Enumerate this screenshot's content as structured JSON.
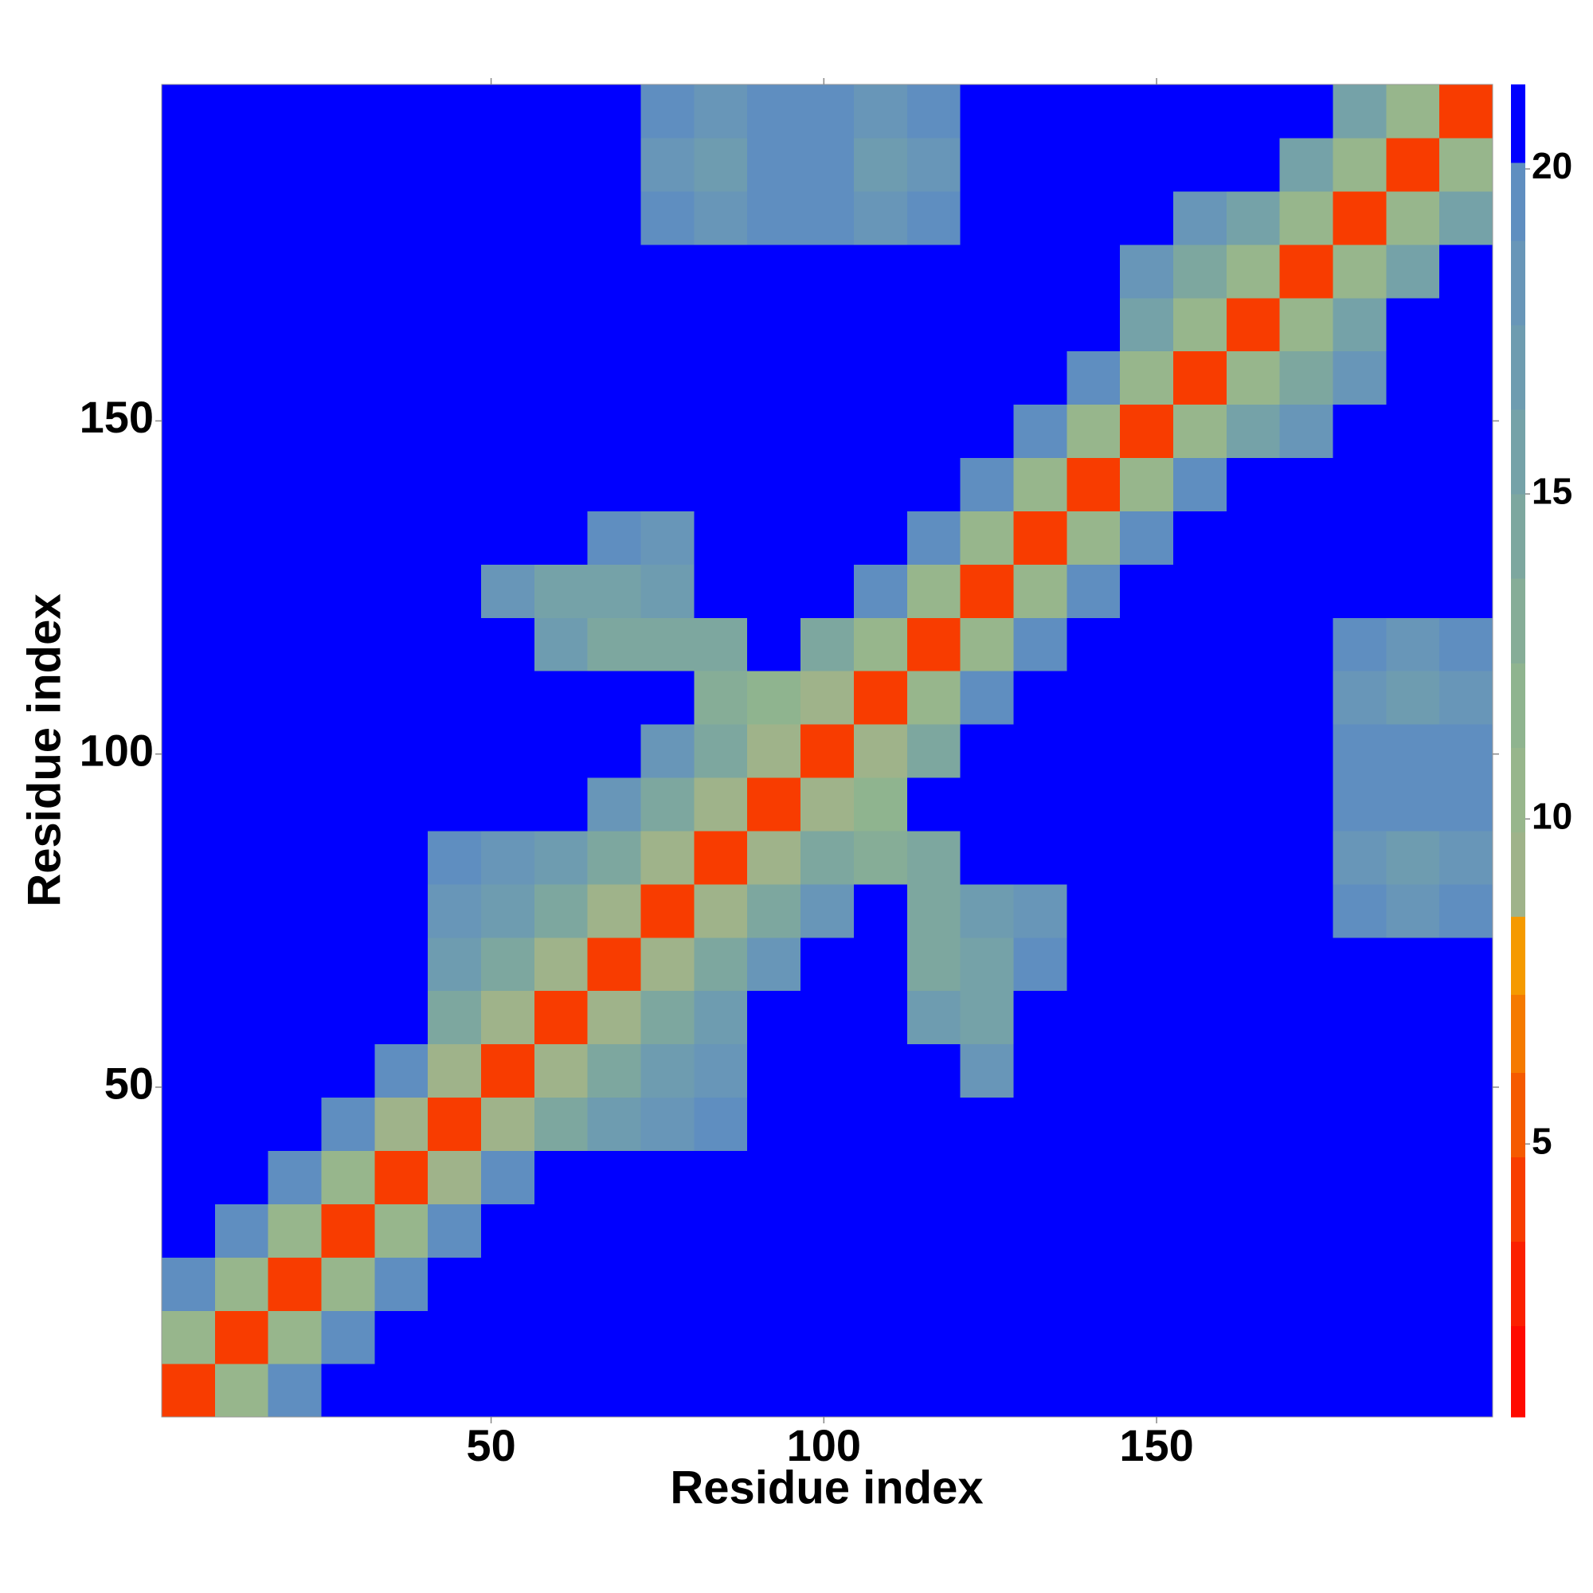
{
  "chart_data": {
    "type": "heatmap",
    "xlabel": "Residue index",
    "ylabel": "Residue index",
    "xlim": [
      0.5,
      200.5
    ],
    "ylim": [
      0.5,
      200.5
    ],
    "xticks": [
      50,
      100,
      150
    ],
    "yticks": [
      50,
      100,
      150
    ],
    "xbins": [
      0.5,
      8.5,
      16.5,
      24.5,
      32.5,
      40.5,
      48.5,
      56.5,
      64.5,
      72.5,
      80.5,
      88.5,
      96.5,
      104.5,
      112.5,
      120.5,
      128.5,
      136.5,
      144.5,
      152.5,
      160.5,
      168.5,
      176.5,
      184.5,
      192.5,
      200.5
    ],
    "ybins": [
      0.5,
      8.5,
      16.5,
      24.5,
      32.5,
      40.5,
      48.5,
      56.5,
      64.5,
      72.5,
      80.5,
      88.5,
      96.5,
      104.5,
      112.5,
      120.5,
      128.5,
      136.5,
      144.5,
      152.5,
      160.5,
      168.5,
      176.5,
      184.5,
      192.5,
      200.5
    ],
    "z": [
      [
        4,
        11,
        20,
        21,
        21,
        21,
        21,
        21,
        21,
        21,
        21,
        21,
        21,
        21,
        21,
        21,
        21,
        21,
        21,
        21,
        21,
        21,
        21,
        21,
        21
      ],
      [
        11,
        4,
        11,
        20,
        21,
        21,
        21,
        21,
        21,
        21,
        21,
        21,
        21,
        21,
        21,
        21,
        21,
        21,
        21,
        21,
        21,
        21,
        21,
        21,
        21
      ],
      [
        20,
        11,
        4,
        11,
        20,
        21,
        21,
        21,
        21,
        21,
        21,
        21,
        21,
        21,
        21,
        21,
        21,
        21,
        21,
        21,
        21,
        21,
        21,
        21,
        21
      ],
      [
        21,
        20,
        11,
        4,
        11,
        20,
        21,
        21,
        21,
        21,
        21,
        21,
        21,
        21,
        21,
        21,
        21,
        21,
        21,
        21,
        21,
        21,
        21,
        21,
        21
      ],
      [
        21,
        21,
        20,
        11,
        4,
        9,
        20,
        21,
        21,
        21,
        21,
        21,
        21,
        21,
        21,
        21,
        21,
        21,
        21,
        21,
        21,
        21,
        21,
        21,
        21
      ],
      [
        21,
        21,
        21,
        20,
        9,
        4,
        9,
        15,
        17,
        18,
        19,
        21,
        21,
        21,
        21,
        21,
        21,
        21,
        21,
        21,
        21,
        21,
        21,
        21,
        21
      ],
      [
        21,
        21,
        21,
        21,
        20,
        9,
        4,
        9,
        15,
        17,
        18,
        21,
        21,
        21,
        21,
        18,
        21,
        21,
        21,
        21,
        21,
        21,
        21,
        21,
        21
      ],
      [
        21,
        21,
        21,
        21,
        21,
        15,
        9,
        4,
        9,
        15,
        17,
        21,
        21,
        21,
        17,
        16,
        21,
        21,
        21,
        21,
        21,
        21,
        21,
        21,
        21
      ],
      [
        21,
        21,
        21,
        21,
        21,
        17,
        15,
        9,
        4,
        9,
        15,
        18,
        21,
        21,
        15,
        16,
        19,
        21,
        21,
        21,
        21,
        21,
        21,
        21,
        21
      ],
      [
        21,
        21,
        21,
        21,
        21,
        18,
        17,
        15,
        9,
        4,
        9,
        15,
        18,
        21,
        14,
        17,
        18,
        21,
        21,
        21,
        21,
        21,
        19,
        18,
        19
      ],
      [
        21,
        21,
        21,
        21,
        21,
        19,
        18,
        17,
        15,
        9,
        4,
        9,
        15,
        13,
        14,
        21,
        21,
        21,
        21,
        21,
        21,
        21,
        18,
        17,
        18
      ],
      [
        21,
        21,
        21,
        21,
        21,
        21,
        21,
        21,
        18,
        15,
        9,
        4,
        9,
        12,
        21,
        21,
        21,
        21,
        21,
        21,
        21,
        21,
        19,
        19,
        20
      ],
      [
        21,
        21,
        21,
        21,
        21,
        21,
        21,
        21,
        21,
        18,
        15,
        9,
        4,
        9,
        15,
        21,
        21,
        21,
        21,
        21,
        21,
        21,
        19,
        19,
        20
      ],
      [
        21,
        21,
        21,
        21,
        21,
        21,
        21,
        21,
        21,
        21,
        13,
        12,
        9,
        4,
        10,
        19,
        21,
        21,
        21,
        21,
        21,
        21,
        18,
        17,
        18
      ],
      [
        21,
        21,
        21,
        21,
        21,
        21,
        21,
        17,
        15,
        14,
        14,
        21,
        15,
        10,
        4,
        10,
        19,
        21,
        21,
        21,
        21,
        21,
        19,
        18,
        19
      ],
      [
        21,
        21,
        21,
        21,
        21,
        21,
        18,
        16,
        16,
        17,
        21,
        21,
        21,
        19,
        10,
        4,
        10,
        19,
        21,
        21,
        21,
        21,
        21,
        21,
        21
      ],
      [
        21,
        21,
        21,
        21,
        21,
        21,
        21,
        21,
        19,
        18,
        21,
        21,
        21,
        21,
        19,
        10,
        4,
        11,
        19,
        21,
        21,
        21,
        21,
        21,
        21
      ],
      [
        21,
        21,
        21,
        21,
        21,
        21,
        21,
        21,
        21,
        21,
        21,
        21,
        21,
        21,
        21,
        19,
        11,
        4,
        11,
        19,
        21,
        21,
        21,
        21,
        21
      ],
      [
        21,
        21,
        21,
        21,
        21,
        21,
        21,
        21,
        21,
        21,
        21,
        21,
        21,
        21,
        21,
        21,
        19,
        11,
        4,
        11,
        16,
        18,
        21,
        21,
        21
      ],
      [
        21,
        21,
        21,
        21,
        21,
        21,
        21,
        21,
        21,
        21,
        21,
        21,
        21,
        21,
        21,
        21,
        21,
        19,
        11,
        4,
        11,
        14,
        18,
        21,
        21
      ],
      [
        21,
        21,
        21,
        21,
        21,
        21,
        21,
        21,
        21,
        21,
        21,
        21,
        21,
        21,
        21,
        21,
        21,
        21,
        16,
        11,
        4,
        10,
        16,
        21,
        21
      ],
      [
        21,
        21,
        21,
        21,
        21,
        21,
        21,
        21,
        21,
        21,
        21,
        21,
        21,
        21,
        21,
        21,
        21,
        21,
        18,
        14,
        10,
        4,
        10,
        16,
        21
      ],
      [
        21,
        21,
        21,
        21,
        21,
        21,
        21,
        21,
        21,
        19,
        18,
        19,
        19,
        18,
        19,
        21,
        21,
        21,
        21,
        18,
        16,
        10,
        4,
        10,
        16
      ],
      [
        21,
        21,
        21,
        21,
        21,
        21,
        21,
        21,
        21,
        18,
        17,
        19,
        19,
        17,
        18,
        21,
        21,
        21,
        21,
        21,
        21,
        16,
        10,
        4,
        10
      ],
      [
        21,
        21,
        21,
        21,
        21,
        21,
        21,
        21,
        21,
        19,
        18,
        20,
        20,
        18,
        19,
        21,
        21,
        21,
        21,
        21,
        21,
        21,
        16,
        10,
        4
      ]
    ],
    "colorbar": {
      "range": [
        0.8,
        21.3
      ],
      "ticks": [
        5,
        10,
        15,
        20
      ],
      "edges": [
        0.8,
        2.2,
        3.5,
        4.8,
        6.1,
        7.3,
        8.5,
        9.8,
        11.1,
        12.4,
        13.7,
        15,
        16.3,
        17.6,
        18.9,
        20.1,
        21.3
      ],
      "colors": [
        "#ff0a00",
        "#fb2000",
        "#f83c00",
        "#f55a00",
        "#f57a00",
        "#f59a00",
        "#9fb38a",
        "#97b68c",
        "#8fb48f",
        "#86ad97",
        "#7da79f",
        "#75a2a8",
        "#6e9cb0",
        "#6896b8",
        "#5f8ec0",
        "#0000ff"
      ]
    }
  }
}
